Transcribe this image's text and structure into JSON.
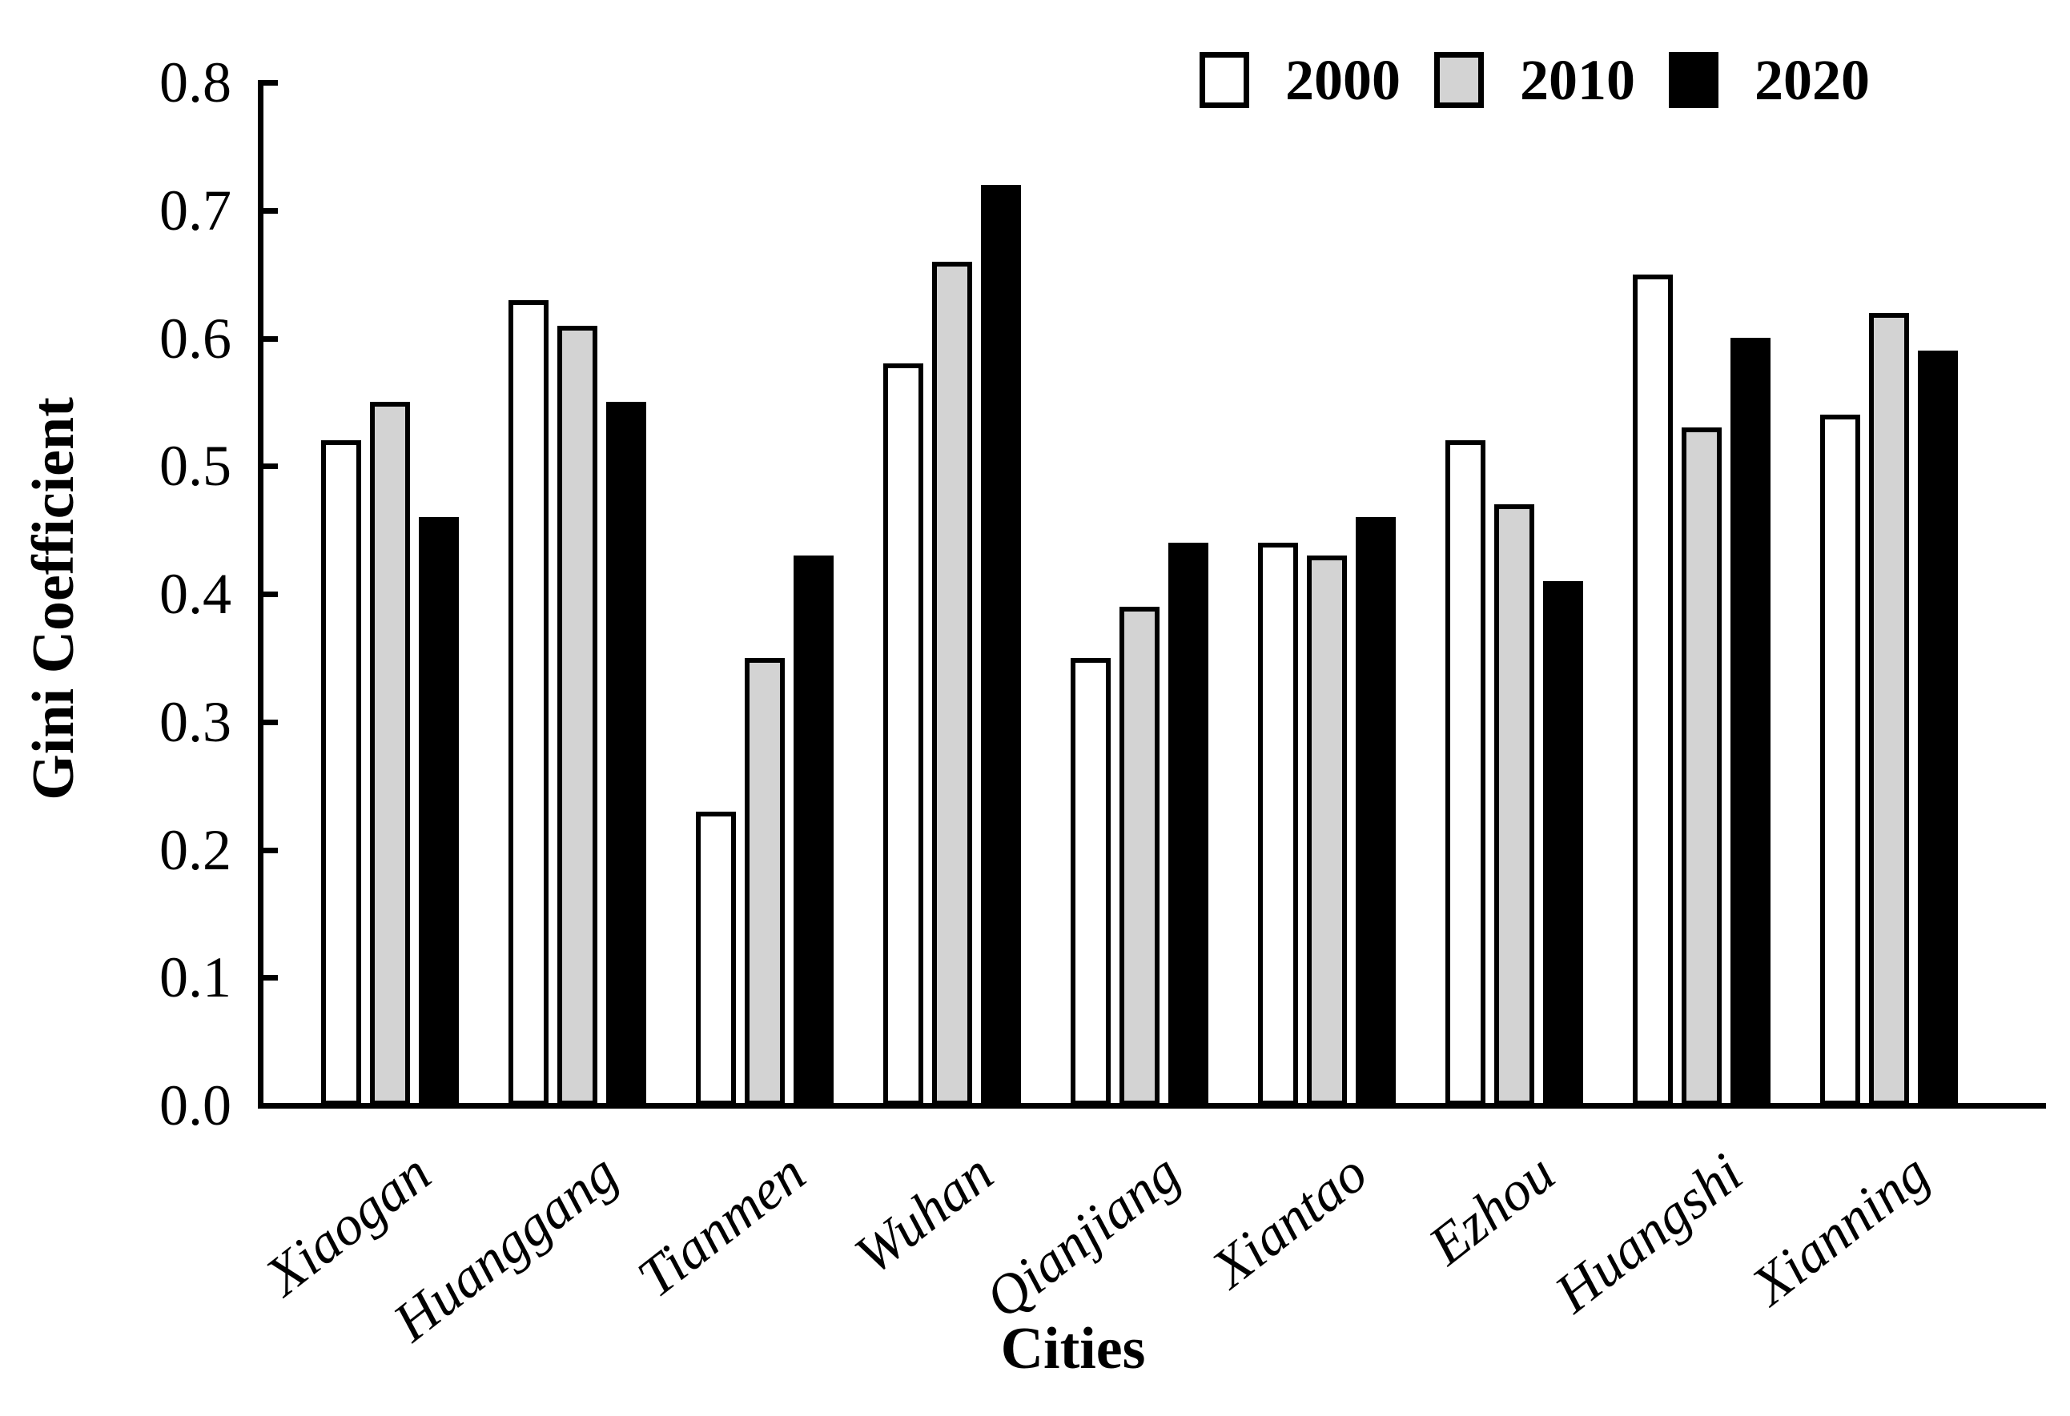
{
  "chart_data": {
    "type": "bar",
    "title": "",
    "xlabel": "Cities",
    "ylabel": "Gini Coefficient",
    "ylim": [
      0.0,
      0.8
    ],
    "y_tick_labels": [
      "0.0",
      "0.1",
      "0.2",
      "0.3",
      "0.4",
      "0.5",
      "0.6",
      "0.7",
      "0.8"
    ],
    "grid": false,
    "legend_position": "top-right-inside",
    "background_color": "#ffffff",
    "bar_outline_color": "#000000",
    "categories": [
      "Xiaogan",
      "Huanggang",
      "Tianmen",
      "Wuhan",
      "Qianjiang",
      "Xiantao",
      "Ezhou",
      "Huangshi",
      "Xianning"
    ],
    "series": [
      {
        "name": "2000",
        "fill": "#ffffff",
        "values": [
          0.52,
          0.63,
          0.23,
          0.58,
          0.35,
          0.44,
          0.52,
          0.65,
          0.54
        ]
      },
      {
        "name": "2010",
        "fill": "#d3d3d3",
        "values": [
          0.55,
          0.61,
          0.35,
          0.66,
          0.39,
          0.43,
          0.47,
          0.53,
          0.62
        ]
      },
      {
        "name": "2020",
        "fill": "#000000",
        "values": [
          0.46,
          0.55,
          0.43,
          0.72,
          0.44,
          0.46,
          0.41,
          0.6,
          0.59
        ]
      }
    ]
  }
}
